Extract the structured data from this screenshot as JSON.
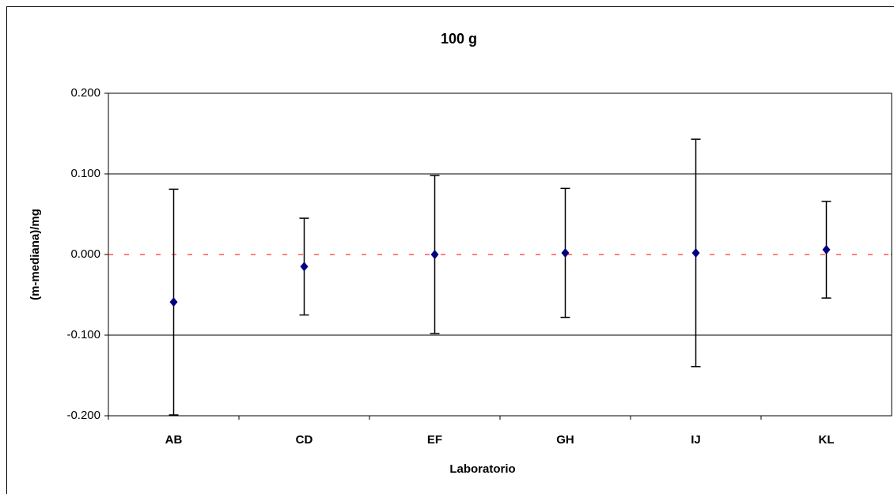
{
  "chart_data": {
    "type": "errorbar",
    "title": "100 g",
    "x_label": "Laboratorio",
    "y_label": "(m-mediana)/mg",
    "categories": [
      "AB",
      "CD",
      "EF",
      "GH",
      "IJ",
      "KL"
    ],
    "series": [
      {
        "color": "#000080",
        "values": [
          -0.059,
          -0.015,
          0.0,
          0.002,
          0.002,
          0.006
        ],
        "errors": [
          0.14,
          0.06,
          0.098,
          0.08,
          0.141,
          0.06
        ]
      }
    ],
    "ylim": [
      -0.2,
      0.2
    ],
    "yticks": [
      {
        "value": -0.2,
        "label": "-0.200"
      },
      {
        "value": -0.1,
        "label": "-0.100"
      },
      {
        "value": 0,
        "label": "0.000"
      },
      {
        "value": 0.1,
        "label": "0.100"
      },
      {
        "value": 0.2,
        "label": "0.200"
      }
    ],
    "grid": true,
    "reference_line": 0,
    "reference_color": "#ff0000"
  }
}
